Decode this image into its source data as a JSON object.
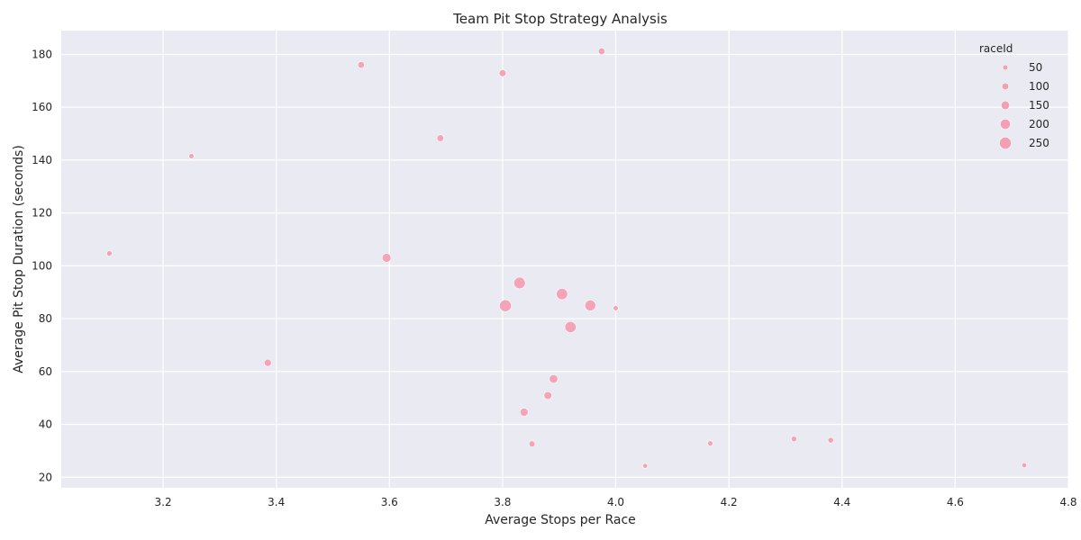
{
  "chart_data": {
    "type": "scatter",
    "title": "Team Pit Stop Strategy Analysis",
    "xlabel": "Average Stops per Race",
    "ylabel": "Average Pit Stop Duration (seconds)",
    "xlim": [
      3.02,
      4.8
    ],
    "ylim": [
      16,
      189
    ],
    "xticks": [
      3.2,
      3.4,
      3.6,
      3.8,
      4.0,
      4.2,
      4.4,
      4.6,
      4.8
    ],
    "xtick_labels": [
      "3.2",
      "3.4",
      "3.6",
      "3.8",
      "4.0",
      "4.2",
      "4.4",
      "4.6",
      "4.8"
    ],
    "yticks": [
      20,
      40,
      60,
      80,
      100,
      120,
      140,
      160,
      180
    ],
    "ytick_labels": [
      "20",
      "40",
      "60",
      "80",
      "100",
      "120",
      "140",
      "160",
      "180"
    ],
    "grid": true,
    "legend": {
      "title": "raceId",
      "placement": "top-right",
      "entries": [
        {
          "label": "50",
          "value": 50
        },
        {
          "label": "100",
          "value": 100
        },
        {
          "label": "150",
          "value": 150
        },
        {
          "label": "200",
          "value": 200
        },
        {
          "label": "250",
          "value": 250
        }
      ]
    },
    "colors": {
      "background": "#eaeaf2",
      "grid": "#ffffff",
      "point": "#f4a0b4"
    },
    "size_range": [
      30,
      270
    ],
    "points": [
      {
        "x": 3.55,
        "y": 176.0,
        "size": 95
      },
      {
        "x": 3.975,
        "y": 181.2,
        "size": 95
      },
      {
        "x": 3.8,
        "y": 172.9,
        "size": 105
      },
      {
        "x": 3.25,
        "y": 141.5,
        "size": 50
      },
      {
        "x": 3.69,
        "y": 148.3,
        "size": 100
      },
      {
        "x": 3.105,
        "y": 104.7,
        "size": 60
      },
      {
        "x": 3.595,
        "y": 103.0,
        "size": 160
      },
      {
        "x": 3.83,
        "y": 93.5,
        "size": 240
      },
      {
        "x": 3.905,
        "y": 89.3,
        "size": 230
      },
      {
        "x": 3.805,
        "y": 84.9,
        "size": 250
      },
      {
        "x": 3.955,
        "y": 85.0,
        "size": 220
      },
      {
        "x": 4.0,
        "y": 84.0,
        "size": 50
      },
      {
        "x": 3.92,
        "y": 76.8,
        "size": 230
      },
      {
        "x": 3.385,
        "y": 63.3,
        "size": 110
      },
      {
        "x": 3.89,
        "y": 57.2,
        "size": 150
      },
      {
        "x": 3.88,
        "y": 50.9,
        "size": 130
      },
      {
        "x": 3.838,
        "y": 44.6,
        "size": 140
      },
      {
        "x": 3.852,
        "y": 32.6,
        "size": 80
      },
      {
        "x": 4.167,
        "y": 32.8,
        "size": 55
      },
      {
        "x": 4.315,
        "y": 34.5,
        "size": 65
      },
      {
        "x": 4.38,
        "y": 34.0,
        "size": 65
      },
      {
        "x": 4.052,
        "y": 24.3,
        "size": 40
      },
      {
        "x": 4.722,
        "y": 24.5,
        "size": 45
      }
    ]
  }
}
